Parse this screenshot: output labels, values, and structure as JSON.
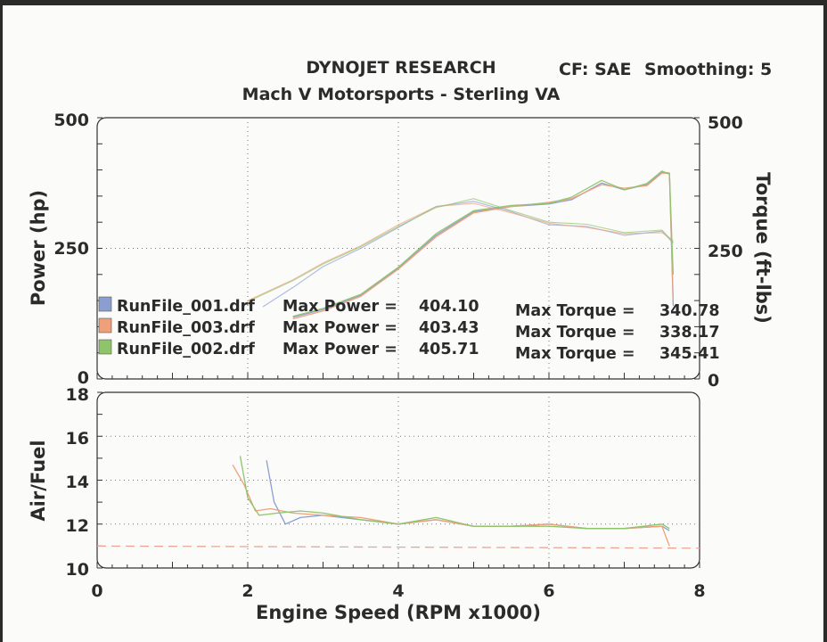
{
  "header": {
    "title": "DYNOJET RESEARCH",
    "subtitle": "Mach V Motorsports - Sterling VA",
    "cf": "CF: SAE",
    "smoothing": "Smoothing: 5"
  },
  "colors": {
    "RunFile_001": "#8a9ed0",
    "RunFile_003": "#ef9f7a",
    "RunFile_002": "#8ec46a",
    "target": "#e9a593",
    "background": "#fbfbfa"
  },
  "legend": [
    {
      "run": "RunFile_001.drf",
      "power_label": "Max Power =",
      "max_power": "404.10",
      "torque_label": "Max Torque =",
      "max_torque": "340.78"
    },
    {
      "run": "RunFile_003.drf",
      "power_label": "Max Power =",
      "max_power": "403.43",
      "torque_label": "Max Torque =",
      "max_torque": "338.17"
    },
    {
      "run": "RunFile_002.drf",
      "power_label": "Max Power =",
      "max_power": "405.71",
      "torque_label": "Max Torque =",
      "max_torque": "345.41"
    }
  ],
  "chart_data": [
    {
      "type": "line",
      "ylabel": "Power (hp)",
      "y2label": "Torque (ft-lbs)",
      "xlim": [
        0,
        8
      ],
      "ylim": [
        0,
        500
      ],
      "y2lim": [
        0,
        500
      ],
      "yticks": [
        "0",
        "250",
        "500"
      ],
      "y2ticks": [
        "0",
        "250",
        "500"
      ],
      "grid": true,
      "series": [
        {
          "name": "RunFile_001.drf",
          "measure": "power",
          "color": "#8a9ed0",
          "x": [
            2.6,
            3.0,
            3.5,
            4.0,
            4.5,
            5.0,
            5.5,
            6.0,
            6.3,
            6.7,
            7.0,
            7.3,
            7.5,
            7.6,
            7.65
          ],
          "y": [
            118,
            133,
            160,
            212,
            275,
            320,
            330,
            335,
            343,
            375,
            362,
            372,
            396,
            394,
            140
          ]
        },
        {
          "name": "RunFile_003.drf",
          "measure": "power",
          "color": "#ef9f7a",
          "x": [
            2.6,
            3.0,
            3.5,
            4.0,
            4.5,
            5.0,
            5.5,
            6.0,
            6.3,
            6.7,
            7.0,
            7.3,
            7.5,
            7.6,
            7.65
          ],
          "y": [
            115,
            130,
            158,
            210,
            272,
            318,
            330,
            338,
            345,
            372,
            365,
            370,
            394,
            393,
            150
          ]
        },
        {
          "name": "RunFile_002.drf",
          "measure": "power",
          "color": "#8ec46a",
          "x": [
            2.6,
            3.0,
            3.5,
            4.0,
            4.5,
            5.0,
            5.5,
            6.0,
            6.3,
            6.7,
            7.0,
            7.3,
            7.5,
            7.6,
            7.65
          ],
          "y": [
            120,
            135,
            162,
            214,
            278,
            322,
            332,
            336,
            348,
            380,
            362,
            374,
            398,
            392,
            200
          ]
        },
        {
          "name": "RunFile_001.drf",
          "measure": "torque",
          "color": "#8a9ed0",
          "x": [
            2.2,
            2.6,
            3.0,
            3.5,
            4.0,
            4.5,
            5.0,
            5.5,
            6.0,
            6.5,
            7.0,
            7.5,
            7.65
          ],
          "y": [
            138,
            175,
            215,
            250,
            290,
            330,
            340,
            320,
            295,
            292,
            275,
            283,
            260
          ]
        },
        {
          "name": "RunFile_003.drf",
          "measure": "torque",
          "color": "#ef9f7a",
          "x": [
            2.0,
            2.6,
            3.0,
            3.5,
            4.0,
            4.5,
            5.0,
            5.5,
            6.0,
            6.5,
            7.0,
            7.5,
            7.65
          ],
          "y": [
            150,
            190,
            222,
            255,
            295,
            330,
            336,
            318,
            298,
            290,
            278,
            280,
            265
          ]
        },
        {
          "name": "RunFile_002.drf",
          "measure": "torque",
          "color": "#8ec46a",
          "x": [
            2.0,
            2.6,
            3.0,
            3.5,
            4.0,
            4.5,
            5.0,
            5.5,
            6.0,
            6.5,
            7.0,
            7.5,
            7.65
          ],
          "y": [
            148,
            188,
            220,
            253,
            292,
            328,
            345,
            322,
            300,
            296,
            280,
            285,
            262
          ]
        }
      ]
    },
    {
      "type": "line",
      "xlabel": "Engine Speed (RPM x1000)",
      "ylabel": "Air/Fuel",
      "xlim": [
        0,
        8
      ],
      "ylim": [
        10,
        18
      ],
      "xticks": [
        "0",
        "2",
        "4",
        "6",
        "8"
      ],
      "yticks": [
        "10",
        "12",
        "14",
        "16",
        "18"
      ],
      "grid": true,
      "series": [
        {
          "name": "RunFile_001.drf",
          "color": "#8a9ed0",
          "x": [
            2.25,
            2.35,
            2.5,
            2.7,
            3.0,
            3.5,
            4.0,
            4.5,
            5.0,
            5.5,
            6.0,
            6.5,
            7.0,
            7.5,
            7.6
          ],
          "y": [
            14.9,
            13.0,
            12.0,
            12.3,
            12.4,
            12.2,
            12.0,
            12.2,
            11.9,
            11.9,
            12.0,
            11.8,
            11.8,
            11.9,
            11.7
          ]
        },
        {
          "name": "RunFile_003.drf",
          "color": "#ef9f7a",
          "x": [
            1.8,
            1.95,
            2.1,
            2.3,
            2.6,
            3.0,
            3.5,
            4.0,
            4.5,
            5.0,
            5.5,
            6.0,
            6.5,
            7.0,
            7.5,
            7.6
          ],
          "y": [
            14.7,
            13.8,
            12.6,
            12.7,
            12.5,
            12.4,
            12.3,
            12.0,
            12.2,
            11.9,
            11.9,
            12.0,
            11.8,
            11.8,
            11.9,
            11.0
          ]
        },
        {
          "name": "RunFile_002.drf",
          "color": "#8ec46a",
          "x": [
            1.9,
            2.0,
            2.15,
            2.4,
            2.7,
            3.0,
            3.5,
            4.0,
            4.5,
            5.0,
            5.5,
            6.0,
            6.5,
            7.0,
            7.5,
            7.6
          ],
          "y": [
            15.1,
            13.2,
            12.4,
            12.5,
            12.6,
            12.5,
            12.2,
            12.0,
            12.3,
            11.9,
            11.9,
            11.9,
            11.8,
            11.8,
            12.0,
            11.8
          ]
        },
        {
          "name": "",
          "color": "#e9a593",
          "dashed": true,
          "x": [
            0,
            8
          ],
          "y": [
            11.0,
            10.9
          ]
        }
      ]
    }
  ]
}
